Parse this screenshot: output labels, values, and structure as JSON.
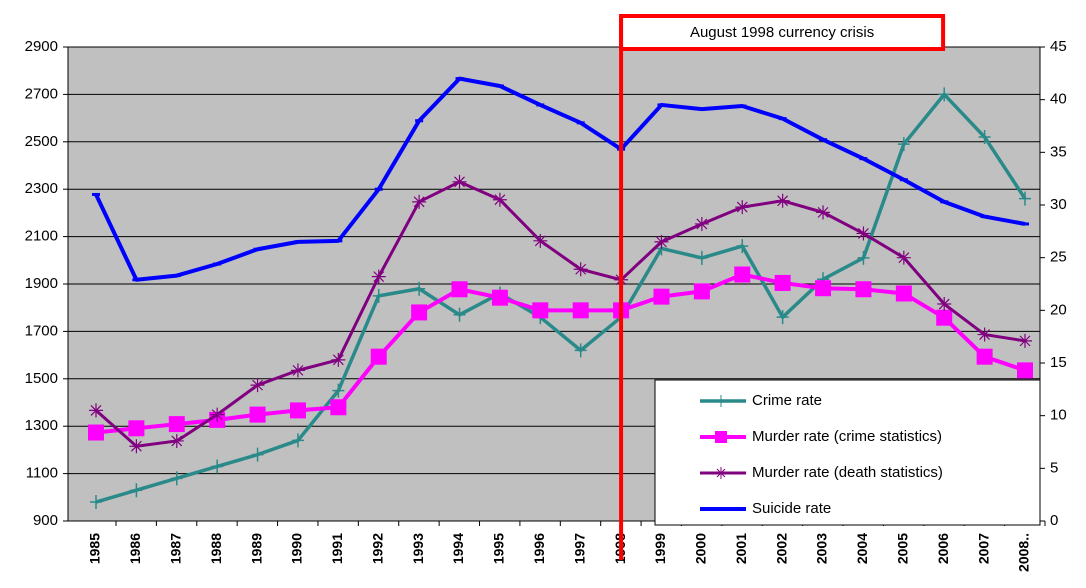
{
  "chart_data": {
    "type": "line",
    "annotation": "August 1998 currency crisis",
    "categories": [
      "1985",
      "1986",
      "1987",
      "1988",
      "1989",
      "1990",
      "1991",
      "1992",
      "1993",
      "1994",
      "1995",
      "1996",
      "1997",
      "1998",
      "1999",
      "2000",
      "2001",
      "2002",
      "2003",
      "2004",
      "2005",
      "2006",
      "2007",
      "2008.."
    ],
    "ylim": [
      900,
      2900
    ],
    "yticks": [
      900,
      1100,
      1300,
      1500,
      1700,
      1900,
      2100,
      2300,
      2500,
      2700,
      2900
    ],
    "y2lim": [
      0,
      45
    ],
    "y2ticks": [
      0,
      5,
      10,
      15,
      20,
      25,
      30,
      35,
      40,
      45
    ],
    "grid": true,
    "legend": "lower right",
    "series": [
      {
        "name": "Crime rate",
        "color": "#2a8a8a",
        "marker": "plus",
        "values": [
          980,
          1030,
          1080,
          1130,
          1180,
          1240,
          1450,
          1850,
          1880,
          1770,
          1860,
          1760,
          1620,
          1760,
          2050,
          2010,
          2060,
          1760,
          1920,
          2010,
          2490,
          2700,
          2520,
          2260
        ]
      },
      {
        "name": "Murder rate (crime statistics)",
        "color": "#ff00ff",
        "marker": "square",
        "axis": "y2",
        "values": [
          8.4,
          8.8,
          9.2,
          9.6,
          10.1,
          10.5,
          10.8,
          15.6,
          19.8,
          22,
          21.2,
          20,
          20,
          20,
          21.3,
          21.8,
          23.4,
          22.6,
          22.1,
          22,
          21.6,
          19.3,
          15.6,
          14.3
        ]
      },
      {
        "name": "Murder rate (death statistics)",
        "color": "#800080",
        "marker": "star",
        "axis": "y2",
        "values": [
          10.5,
          7.1,
          7.6,
          10.1,
          12.9,
          14.3,
          15.3,
          23.2,
          30.3,
          32.2,
          30.5,
          26.6,
          23.9,
          22.9,
          26.5,
          28.2,
          29.8,
          30.4,
          29.3,
          27.3,
          25,
          20.6,
          17.7,
          17.1
        ]
      },
      {
        "name": "Suicide rate",
        "color": "#0000ff",
        "marker": "dash",
        "axis": "y2",
        "values": [
          31,
          22.9,
          23.3,
          24.4,
          25.8,
          26.5,
          26.6,
          31.5,
          38,
          42,
          41.3,
          39.5,
          37.8,
          35.3,
          39.5,
          39.1,
          39.4,
          38.2,
          36.2,
          34.4,
          32.4,
          30.3,
          28.9,
          28.2
        ]
      }
    ]
  }
}
